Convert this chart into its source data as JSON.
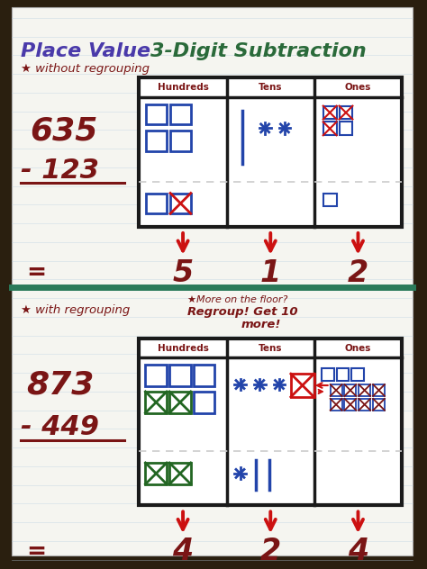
{
  "bg_color": "#2a1f0f",
  "paper_color": "#f5f5f0",
  "line_blue": "#b8cfe0",
  "purple_color": "#4a3aaa",
  "green_color": "#2a6a3a",
  "dark_red": "#7a1515",
  "crimson": "#cc1111",
  "blue_sq": "#2244aa",
  "green_sq": "#226622",
  "teal_line": "#2a7a5a",
  "dark_border": "#1a1a1a",
  "title1": "Place Value ",
  "title2": "3-Digit Subtraction",
  "sub1": "★ without regrouping",
  "sub2": "★ with regrouping",
  "note_line1": "★More on the floor?",
  "note_line2": "Regroup! Get 10",
  "note_line3": "more!",
  "s1_num1": "635",
  "s1_num2": "- 123",
  "s1_res": [
    "5",
    "1",
    "2"
  ],
  "s2_num1": "873",
  "s2_num2": "- 449",
  "s2_res": [
    "4",
    "2",
    "4"
  ],
  "col_headers": [
    "Hundreds",
    "Tens",
    "Ones"
  ]
}
